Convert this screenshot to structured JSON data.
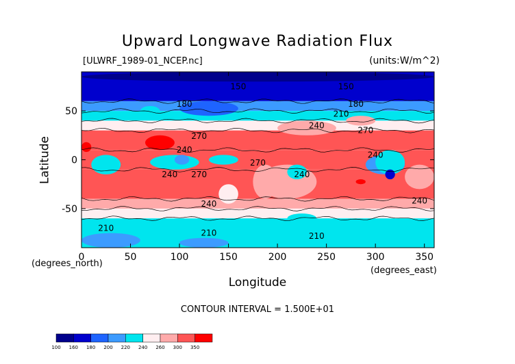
{
  "chart_data": {
    "type": "heatmap",
    "title": "Upward Longwave Radiation Flux",
    "file_label": "[ULWRF_1989-01_NCEP.nc]",
    "units_label": "(units:W/m^2)",
    "xlabel": "Longitude",
    "ylabel": "Latitude",
    "x_units": "(degrees_east)",
    "y_units": "(degrees_north)",
    "xlim": [
      0,
      360
    ],
    "ylim": [
      -90,
      90
    ],
    "x_ticks": [
      0,
      50,
      100,
      150,
      200,
      250,
      300,
      350
    ],
    "y_ticks": [
      -50,
      0,
      50
    ],
    "contour_interval_text": "CONTOUR INTERVAL = 1.500E+01",
    "contour_labels": [
      {
        "text": "150",
        "x": 160,
        "y": 75
      },
      {
        "text": "150",
        "x": 270,
        "y": 75
      },
      {
        "text": "180",
        "x": 105,
        "y": 57
      },
      {
        "text": "180",
        "x": 280,
        "y": 57
      },
      {
        "text": "210",
        "x": 265,
        "y": 47
      },
      {
        "text": "240",
        "x": 240,
        "y": 35
      },
      {
        "text": "270",
        "x": 120,
        "y": 24
      },
      {
        "text": "270",
        "x": 290,
        "y": 30
      },
      {
        "text": "240",
        "x": 105,
        "y": 10
      },
      {
        "text": "240",
        "x": 300,
        "y": 5
      },
      {
        "text": "270",
        "x": 180,
        "y": -3
      },
      {
        "text": "240",
        "x": 90,
        "y": -15
      },
      {
        "text": "270",
        "x": 120,
        "y": -15
      },
      {
        "text": "240",
        "x": 225,
        "y": -15
      },
      {
        "text": "240",
        "x": 130,
        "y": -45
      },
      {
        "text": "240",
        "x": 345,
        "y": -42
      },
      {
        "text": "210",
        "x": 25,
        "y": -70
      },
      {
        "text": "210",
        "x": 130,
        "y": -75
      },
      {
        "text": "210",
        "x": 240,
        "y": -78
      }
    ],
    "colorbar": {
      "levels": [
        100,
        160,
        180,
        200,
        220,
        240,
        260,
        300,
        350
      ],
      "colors": [
        "#00008b",
        "#0000cd",
        "#1e64ff",
        "#3c9bff",
        "#00e5ee",
        "#ffeef0",
        "#ffaaaa",
        "#ff5555",
        "#ff0000"
      ]
    },
    "bands": [
      {
        "lat": [
          60,
          90
        ],
        "level": 1
      },
      {
        "lat": [
          50,
          60
        ],
        "level": 3
      },
      {
        "lat": [
          40,
          50
        ],
        "level": 4
      },
      {
        "lat": [
          30,
          40
        ],
        "level": 5
      },
      {
        "lat": [
          10,
          30
        ],
        "level": 7
      },
      {
        "lat": [
          -10,
          10
        ],
        "level": 7
      },
      {
        "lat": [
          -40,
          -10
        ],
        "level": 7
      },
      {
        "lat": [
          -50,
          -40
        ],
        "level": 6
      },
      {
        "lat": [
          -60,
          -50
        ],
        "level": 5
      },
      {
        "lat": [
          -90,
          -60
        ],
        "level": 4
      }
    ],
    "patches": [
      {
        "lon": [
          65,
          95
        ],
        "lat": [
          10,
          25
        ],
        "level": 8
      },
      {
        "lon": [
          0,
          10
        ],
        "lat": [
          8,
          18
        ],
        "level": 8
      },
      {
        "lon": [
          180,
          240
        ],
        "lat": [
          -5,
          -40
        ],
        "level": 6
      },
      {
        "lon": [
          10,
          40
        ],
        "lat": [
          -15,
          5
        ],
        "level": 4
      },
      {
        "lon": [
          70,
          120
        ],
        "lat": [
          -10,
          5
        ],
        "level": 4
      },
      {
        "lon": [
          95,
          110
        ],
        "lat": [
          -5,
          5
        ],
        "level": 3
      },
      {
        "lon": [
          130,
          160
        ],
        "lat": [
          -5,
          5
        ],
        "level": 4
      },
      {
        "lon": [
          140,
          160
        ],
        "lat": [
          -25,
          -45
        ],
        "level": 5
      },
      {
        "lon": [
          175,
          200
        ],
        "lat": [
          -40,
          -5
        ],
        "level": 6
      },
      {
        "lon": [
          210,
          230
        ],
        "lat": [
          -5,
          -20
        ],
        "level": 4
      },
      {
        "lon": [
          290,
          330
        ],
        "lat": [
          -15,
          5
        ],
        "level": 3
      },
      {
        "lon": [
          300,
          330
        ],
        "lat": [
          -15,
          10
        ],
        "level": 4
      },
      {
        "lon": [
          310,
          320
        ],
        "lat": [
          -20,
          -10
        ],
        "level": 1
      },
      {
        "lon": [
          280,
          290
        ],
        "lat": [
          -20,
          -25
        ],
        "level": 8
      },
      {
        "lon": [
          330,
          360
        ],
        "lat": [
          -5,
          -30
        ],
        "level": 6
      },
      {
        "lon": [
          60,
          80
        ],
        "lat": [
          45,
          55
        ],
        "level": 4
      },
      {
        "lon": [
          100,
          160
        ],
        "lat": [
          45,
          60
        ],
        "level": 2
      },
      {
        "lon": [
          240,
          330
        ],
        "lat": [
          40,
          50
        ],
        "level": 4
      },
      {
        "lon": [
          270,
          300
        ],
        "lat": [
          35,
          45
        ],
        "level": 6
      },
      {
        "lon": [
          200,
          260
        ],
        "lat": [
          25,
          40
        ],
        "level": 6
      },
      {
        "lon": [
          210,
          240
        ],
        "lat": [
          -65,
          -55
        ],
        "level": 4
      },
      {
        "lon": [
          0,
          60
        ],
        "lat": [
          -90,
          -75
        ],
        "level": 3
      },
      {
        "lon": [
          100,
          150
        ],
        "lat": [
          -90,
          -80
        ],
        "level": 3
      },
      {
        "lon": [
          0,
          360
        ],
        "lat": [
          80,
          90
        ],
        "level": 0
      }
    ]
  }
}
